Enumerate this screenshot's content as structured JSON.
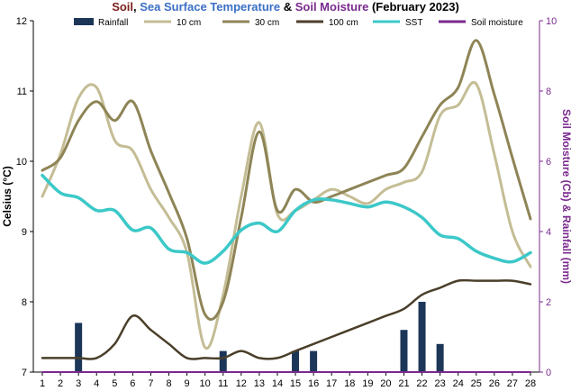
{
  "chart_data": {
    "type": "line",
    "title_parts": [
      {
        "text": "Soil",
        "color": "#7a1f1f"
      },
      {
        "text": ", ",
        "color": "#000000"
      },
      {
        "text": "Sea Surface Temperature",
        "color": "#3a6fc4"
      },
      {
        "text": " & ",
        "color": "#000000"
      },
      {
        "text": "Soil Moisture",
        "color": "#7a2a8e"
      },
      {
        "text": " (February 2023)",
        "color": "#000000"
      }
    ],
    "ylabel_left": "Celsius (°C)",
    "ylabel_right": "Soil Moisture (Cb) & Rainfall (mm)",
    "x": [
      1,
      2,
      3,
      4,
      5,
      6,
      7,
      8,
      9,
      10,
      11,
      12,
      13,
      14,
      15,
      16,
      17,
      18,
      19,
      20,
      21,
      22,
      23,
      24,
      25,
      26,
      27,
      28
    ],
    "ylim_left": [
      7,
      12
    ],
    "yticks_left": [
      "7",
      "8",
      "9",
      "10",
      "11",
      "12"
    ],
    "ylim_right": [
      0,
      10
    ],
    "yticks_right": [
      "0",
      "2",
      "4",
      "6",
      "8",
      "10"
    ],
    "grid": false,
    "legend_position": "top",
    "series": [
      {
        "name": "Rainfall",
        "kind": "bar",
        "axis": "right",
        "color": "#1c3658",
        "values": [
          0,
          0,
          1.4,
          0,
          0,
          0,
          0,
          0,
          0,
          0,
          0.6,
          0,
          0,
          0,
          0.6,
          0.6,
          0,
          0,
          0,
          0,
          1.2,
          2.0,
          0.8,
          0,
          0,
          0,
          0,
          0
        ]
      },
      {
        "name": "10 cm",
        "kind": "line",
        "axis": "left",
        "color": "#c4bd95",
        "values": [
          9.5,
          10.1,
          10.9,
          11.05,
          10.3,
          10.15,
          9.6,
          9.2,
          8.7,
          7.35,
          8.1,
          9.5,
          10.55,
          9.25,
          9.3,
          9.45,
          9.6,
          9.5,
          9.4,
          9.6,
          9.7,
          9.85,
          10.65,
          10.8,
          11.1,
          10.1,
          9.0,
          8.5
        ]
      },
      {
        "name": "30 cm",
        "kind": "line",
        "axis": "left",
        "color": "#8e8456",
        "values": [
          9.87,
          10.05,
          10.58,
          10.85,
          10.58,
          10.85,
          10.15,
          9.55,
          8.9,
          7.82,
          8.0,
          9.2,
          10.42,
          9.3,
          9.6,
          9.42,
          9.5,
          9.6,
          9.7,
          9.8,
          9.9,
          10.35,
          10.8,
          11.05,
          11.72,
          10.95,
          10.05,
          9.18
        ]
      },
      {
        "name": "100 cm",
        "kind": "line",
        "axis": "left",
        "color": "#4a3f2a",
        "values": [
          7.2,
          7.2,
          7.2,
          7.2,
          7.4,
          7.8,
          7.6,
          7.4,
          7.2,
          7.2,
          7.2,
          7.3,
          7.2,
          7.2,
          7.3,
          7.4,
          7.5,
          7.6,
          7.7,
          7.8,
          7.9,
          8.1,
          8.2,
          8.3,
          8.3,
          8.3,
          8.3,
          8.25
        ]
      },
      {
        "name": "SST",
        "kind": "line",
        "axis": "left",
        "color": "#3cc8c8",
        "values": [
          9.8,
          9.55,
          9.48,
          9.3,
          9.3,
          9.02,
          9.05,
          8.75,
          8.7,
          8.55,
          8.72,
          9.02,
          9.12,
          9.0,
          9.3,
          9.45,
          9.45,
          9.4,
          9.35,
          9.42,
          9.35,
          9.2,
          8.95,
          8.9,
          8.72,
          8.62,
          8.57,
          8.7
        ]
      },
      {
        "name": "Soil moisture",
        "kind": "line",
        "axis": "right",
        "color": "#7a2a8e",
        "values": [
          0,
          0,
          0,
          0,
          0,
          0,
          0,
          0,
          0,
          0,
          0,
          0,
          0,
          0,
          0,
          0,
          0,
          0,
          0,
          0,
          0,
          0,
          0,
          0,
          0,
          0,
          0,
          0
        ]
      }
    ]
  }
}
